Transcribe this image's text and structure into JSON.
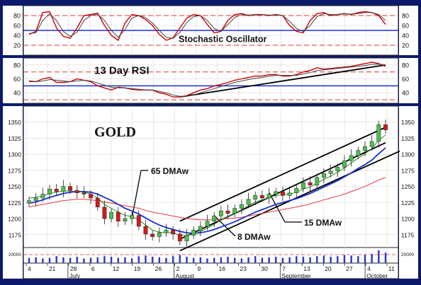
{
  "chart_data": [
    {
      "type": "line",
      "panel": "stochastic",
      "annotation": "Stochastic Oscillator",
      "yticks": [
        20,
        40,
        60,
        80
      ],
      "ylim": [
        0,
        100
      ],
      "reference_lines": {
        "red_dashed": [
          20,
          80
        ],
        "blue_solid": [
          50
        ]
      },
      "series": [
        {
          "color": "#cc0000",
          "values": [
            42,
            48,
            86,
            88,
            55,
            38,
            34,
            55,
            80,
            82,
            85,
            60,
            40,
            30,
            65,
            82,
            80,
            72,
            60,
            42,
            30,
            35,
            55,
            75,
            82,
            80,
            62,
            45,
            48,
            70,
            82,
            84,
            80,
            82,
            82,
            80,
            82,
            80,
            60,
            48,
            45,
            70,
            84,
            86,
            80,
            82,
            84,
            82,
            86,
            88,
            86,
            80,
            62
          ]
        },
        {
          "color": "#444444",
          "values": [
            44,
            45,
            70,
            84,
            70,
            48,
            38,
            46,
            70,
            80,
            83,
            70,
            50,
            36,
            52,
            75,
            80,
            76,
            65,
            50,
            36,
            34,
            46,
            66,
            78,
            80,
            70,
            54,
            48,
            62,
            76,
            82,
            81,
            81,
            82,
            81,
            81,
            80,
            68,
            54,
            48,
            60,
            78,
            84,
            82,
            82,
            83,
            83,
            84,
            86,
            86,
            82,
            70
          ]
        }
      ]
    },
    {
      "type": "line",
      "panel": "rsi",
      "annotation": "13 Day RSI",
      "yticks": [
        40,
        60,
        80
      ],
      "ylim": [
        25,
        90
      ],
      "reference_lines": {
        "red_dashed": [
          30,
          70
        ],
        "blue_solid": [
          50
        ]
      },
      "series": [
        {
          "color": "#cc0000",
          "values": [
            57,
            56,
            60,
            62,
            55,
            55,
            56,
            60,
            58,
            56,
            50,
            47,
            44,
            48,
            47,
            45,
            44,
            44,
            44,
            40,
            38,
            34,
            34,
            36,
            40,
            44,
            46,
            50,
            52,
            55,
            58,
            60,
            62,
            64,
            64,
            66,
            66,
            64,
            64,
            66,
            70,
            72,
            76,
            74,
            75,
            76,
            77,
            78,
            80,
            82,
            84,
            82,
            78
          ]
        },
        {
          "color": "#444444",
          "values": [
            56,
            56,
            57,
            59,
            58,
            57,
            56,
            57,
            58,
            57,
            54,
            51,
            48,
            47,
            47,
            46,
            45,
            44,
            44,
            42,
            40,
            37,
            35,
            35,
            37,
            40,
            43,
            46,
            49,
            52,
            55,
            57,
            59,
            61,
            62,
            64,
            65,
            65,
            65,
            65,
            67,
            69,
            72,
            73,
            74,
            75,
            76,
            77,
            78,
            79,
            81,
            81,
            80
          ]
        }
      ],
      "trendline": [
        [
          22,
          34
        ],
        [
          52,
          80
        ]
      ]
    },
    {
      "type": "candlestick",
      "panel": "price",
      "title": "GOLD",
      "x_tick_labels": [
        "4",
        "21",
        "28",
        "6",
        "12",
        "19",
        "26",
        "2",
        "9",
        "16",
        "23",
        "30",
        "7",
        "13",
        "20",
        "27",
        "4",
        "11"
      ],
      "month_labels": [
        "July",
        "August",
        "September",
        "October"
      ],
      "yticks": [
        1175,
        1200,
        1225,
        1250,
        1275,
        1300,
        1325,
        1350
      ],
      "ylim": [
        1155,
        1375
      ],
      "volume_tick": "20000",
      "annotations": [
        "65 DMAw",
        "8 DMAw",
        "15 DMAw"
      ],
      "closes": [
        1228,
        1232,
        1238,
        1246,
        1242,
        1250,
        1244,
        1240,
        1238,
        1232,
        1218,
        1200,
        1210,
        1196,
        1200,
        1205,
        1188,
        1176,
        1172,
        1178,
        1182,
        1176,
        1165,
        1174,
        1182,
        1188,
        1196,
        1204,
        1212,
        1208,
        1216,
        1222,
        1230,
        1236,
        1232,
        1238,
        1242,
        1236,
        1240,
        1247,
        1256,
        1252,
        1264,
        1270,
        1274,
        1280,
        1290,
        1298,
        1306,
        1312,
        1320,
        1346,
        1338
      ],
      "wma8": [
        1232,
        1233,
        1235,
        1239,
        1241,
        1243,
        1243,
        1242,
        1241,
        1238,
        1232,
        1222,
        1216,
        1210,
        1205,
        1203,
        1198,
        1190,
        1182,
        1179,
        1178,
        1178,
        1174,
        1174,
        1176,
        1180,
        1185,
        1191,
        1198,
        1203,
        1208,
        1214,
        1220,
        1226,
        1229,
        1233,
        1236,
        1237,
        1238,
        1241,
        1246,
        1249,
        1255,
        1261,
        1266,
        1272,
        1279,
        1286,
        1294,
        1301,
        1309,
        1322,
        1330
      ],
      "wma15": [
        1224,
        1226,
        1229,
        1233,
        1236,
        1239,
        1241,
        1242,
        1242,
        1241,
        1238,
        1233,
        1228,
        1222,
        1216,
        1212,
        1207,
        1201,
        1195,
        1190,
        1186,
        1183,
        1180,
        1178,
        1177,
        1178,
        1180,
        1183,
        1187,
        1191,
        1195,
        1200,
        1205,
        1210,
        1214,
        1218,
        1222,
        1225,
        1228,
        1231,
        1235,
        1239,
        1244,
        1249,
        1254,
        1259,
        1265,
        1271,
        1278,
        1284,
        1291,
        1301,
        1310
      ],
      "wma65": [
        1218,
        1220,
        1222,
        1224,
        1226,
        1228,
        1229,
        1230,
        1230,
        1229,
        1228,
        1226,
        1224,
        1222,
        1220,
        1218,
        1216,
        1213,
        1210,
        1208,
        1206,
        1204,
        1202,
        1200,
        1199,
        1198,
        1198,
        1198,
        1199,
        1200,
        1201,
        1202,
        1204,
        1206,
        1208,
        1210,
        1212,
        1214,
        1216,
        1218,
        1220,
        1223,
        1226,
        1229,
        1232,
        1235,
        1238,
        1242,
        1246,
        1250,
        1255,
        1260,
        1264
      ],
      "channel": {
        "upper": [
          [
            22,
            1196
          ],
          [
            52,
            1342
          ]
        ],
        "lower": [
          [
            22,
            1168
          ],
          [
            52,
            1318
          ]
        ],
        "outer": [
          [
            22,
            1150
          ],
          [
            56,
            1305
          ]
        ]
      },
      "volume": [
        9,
        10,
        8,
        9,
        12,
        10,
        9,
        11,
        8,
        9,
        10,
        12,
        11,
        9,
        10,
        8,
        12,
        13,
        11,
        10,
        9,
        12,
        14,
        11,
        9,
        10,
        8,
        9,
        10,
        11,
        9,
        8,
        10,
        12,
        9,
        10,
        11,
        9,
        10,
        12,
        11,
        10,
        12,
        13,
        11,
        12,
        14,
        13,
        12,
        14,
        16,
        22,
        18
      ]
    }
  ]
}
